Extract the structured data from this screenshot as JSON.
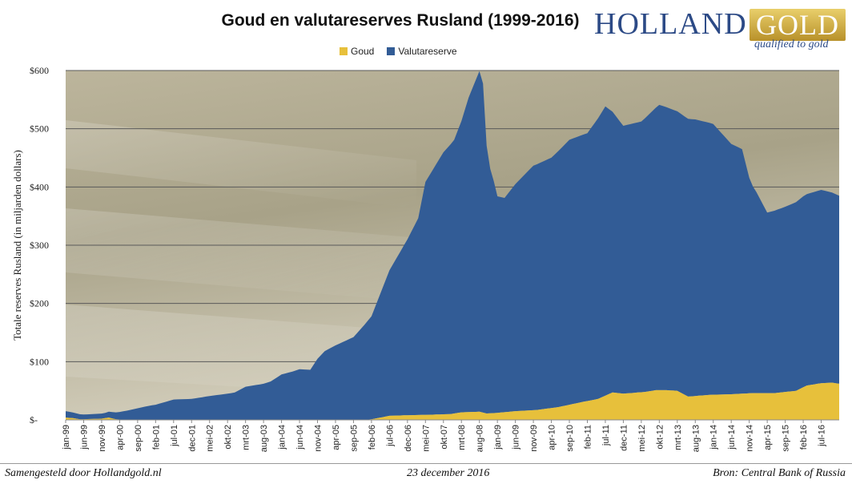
{
  "chart_data": {
    "type": "area",
    "stacked": true,
    "title": "Goud en valutareserves Rusland (1999-2016)",
    "ylabel": "Totale reserves Rusland (in miljarden dollars)",
    "xlabel": "",
    "ylim": [
      0,
      600
    ],
    "yticks": [
      {
        "value": 0,
        "label": "$-"
      },
      {
        "value": 100,
        "label": "$100"
      },
      {
        "value": 200,
        "label": "$200"
      },
      {
        "value": 300,
        "label": "$300"
      },
      {
        "value": 400,
        "label": "$400"
      },
      {
        "value": 500,
        "label": "$500"
      },
      {
        "value": 600,
        "label": "$600"
      }
    ],
    "grid": true,
    "legend_position": "top-center",
    "start_month": "jan-99",
    "end_month": "dec-16",
    "xtick_labels": [
      "jan-99",
      "jun-99",
      "nov-99",
      "apr-00",
      "sep-00",
      "feb-01",
      "jul-01",
      "dec-01",
      "mei-02",
      "okt-02",
      "mrt-03",
      "aug-03",
      "jan-04",
      "jun-04",
      "nov-04",
      "apr-05",
      "sep-05",
      "feb-06",
      "jul-06",
      "dec-06",
      "mei-07",
      "okt-07",
      "mrt-08",
      "aug-08",
      "jan-09",
      "jun-09",
      "nov-09",
      "apr-10",
      "sep-10",
      "feb-11",
      "jul-11",
      "dec-11",
      "mei-12",
      "okt-12",
      "mrt-13",
      "aug-13",
      "jan-14",
      "jun-14",
      "nov-14",
      "apr-15",
      "sep-15",
      "feb-16",
      "jul-16"
    ],
    "series": [
      {
        "name": "Goud",
        "color": "#e7c03b",
        "keyframes": [
          [
            "jan-99",
            4
          ],
          [
            "mrt-99",
            3
          ],
          [
            "mei-99",
            1
          ],
          [
            "nov-99",
            2
          ],
          [
            "jan-00",
            4
          ],
          [
            "mrt-00",
            1
          ],
          [
            "jun-00",
            0
          ],
          [
            "dec-05",
            0
          ],
          [
            "feb-06",
            1
          ],
          [
            "jul-06",
            7
          ],
          [
            "dec-06",
            8
          ],
          [
            "jul-07",
            9
          ],
          [
            "dec-07",
            10
          ],
          [
            "mrt-08",
            13
          ],
          [
            "aug-08",
            14
          ],
          [
            "okt-08",
            11
          ],
          [
            "jan-09",
            12
          ],
          [
            "jun-09",
            15
          ],
          [
            "dec-09",
            17
          ],
          [
            "jun-10",
            22
          ],
          [
            "dec-10",
            30
          ],
          [
            "mei-11",
            36
          ],
          [
            "sep-11",
            47
          ],
          [
            "dec-11",
            45
          ],
          [
            "jun-12",
            48
          ],
          [
            "sep-12",
            51
          ],
          [
            "dec-12",
            51
          ],
          [
            "mrt-13",
            50
          ],
          [
            "jun-13",
            40
          ],
          [
            "dec-13",
            43
          ],
          [
            "jun-14",
            44
          ],
          [
            "dec-14",
            46
          ],
          [
            "jun-15",
            46
          ],
          [
            "dec-15",
            50
          ],
          [
            "mrt-16",
            59
          ],
          [
            "jul-16",
            63
          ],
          [
            "okt-16",
            64
          ],
          [
            "dec-16",
            62
          ]
        ]
      },
      {
        "name": "Valutareserve",
        "color": "#325c96",
        "keyframes": [
          [
            "jan-99",
            11
          ],
          [
            "jun-99",
            8
          ],
          [
            "dec-99",
            9
          ],
          [
            "apr-00",
            13
          ],
          [
            "sep-00",
            20
          ],
          [
            "dec-00",
            24
          ],
          [
            "feb-01",
            26
          ],
          [
            "jul-01",
            35
          ],
          [
            "dec-01",
            36
          ],
          [
            "mei-02",
            41
          ],
          [
            "okt-02",
            45
          ],
          [
            "dec-02",
            47
          ],
          [
            "mrt-03",
            57
          ],
          [
            "aug-03",
            62
          ],
          [
            "okt-03",
            66
          ],
          [
            "jan-04",
            78
          ],
          [
            "apr-04",
            83
          ],
          [
            "jun-04",
            87
          ],
          [
            "sep-04",
            86
          ],
          [
            "nov-04",
            105
          ],
          [
            "jan-05",
            118
          ],
          [
            "apr-05",
            128
          ],
          [
            "sep-05",
            142
          ],
          [
            "feb-06",
            177
          ],
          [
            "jul-06",
            250
          ],
          [
            "dec-06",
            302
          ],
          [
            "mrt-07",
            338
          ],
          [
            "mei-07",
            400
          ],
          [
            "okt-07",
            450
          ],
          [
            "jan-08",
            470
          ],
          [
            "mrt-08",
            500
          ],
          [
            "mei-08",
            540
          ],
          [
            "aug-08",
            585
          ],
          [
            "sep-08",
            565
          ],
          [
            "okt-08",
            460
          ],
          [
            "nov-08",
            420
          ],
          [
            "dec-08",
            398
          ],
          [
            "jan-09",
            372
          ],
          [
            "mrt-09",
            368
          ],
          [
            "jun-09",
            390
          ],
          [
            "nov-09",
            420
          ],
          [
            "apr-10",
            430
          ],
          [
            "sep-10",
            455
          ],
          [
            "feb-11",
            460
          ],
          [
            "jul-11",
            497
          ],
          [
            "dec-11",
            460
          ],
          [
            "mei-12",
            465
          ],
          [
            "okt-12",
            490
          ],
          [
            "mrt-13",
            480
          ],
          [
            "aug-13",
            475
          ],
          [
            "jan-14",
            465
          ],
          [
            "jun-14",
            430
          ],
          [
            "sep-14",
            420
          ],
          [
            "nov-14",
            370
          ],
          [
            "dec-14",
            355
          ],
          [
            "jan-15",
            345
          ],
          [
            "apr-15",
            310
          ],
          [
            "sep-15",
            318
          ],
          [
            "feb-16",
            328
          ],
          [
            "jul-16",
            332
          ],
          [
            "dec-16",
            323
          ]
        ]
      }
    ]
  },
  "legend": {
    "goud": "Goud",
    "valuta": "Valutareserve"
  },
  "logo": {
    "word": "HOLLAND",
    "gold_word": "GOLD",
    "tagline": "qualified to gold"
  },
  "footer": {
    "left": "Samengesteld door Hollandgold.nl",
    "center": "23 december 2016",
    "right": "Bron: Central Bank of Russia"
  }
}
